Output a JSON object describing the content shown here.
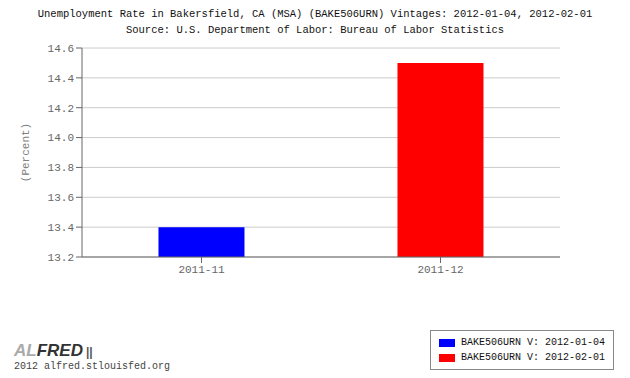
{
  "chart_data": {
    "type": "bar",
    "title": "Unemployment Rate in Bakersfield, CA (MSA) (BAKE506URN) Vintages: 2012-01-04, 2012-02-01",
    "subtitle": "Source: U.S. Department of Labor: Bureau of Labor Statistics",
    "categories": [
      "2011-11",
      "2011-12"
    ],
    "series": [
      {
        "name": "BAKE506URN V: 2012-01-04",
        "color": "#0000ff",
        "values": [
          13.4,
          null
        ]
      },
      {
        "name": "BAKE506URN V: 2012-02-01",
        "color": "#ff0000",
        "values": [
          null,
          14.5
        ]
      }
    ],
    "ylabel": "(Percent)",
    "ylim": [
      13.2,
      14.6
    ],
    "yticks": [
      13.2,
      13.4,
      13.6,
      13.8,
      {
        "value": 14,
        "label": "14.0"
      },
      14.2,
      14.4,
      14.6
    ],
    "grid": true,
    "legend": "lower right",
    "annotations": [
      "AL",
      "FRED",
      "||",
      "2012 alfred.stlouisfed.org"
    ]
  }
}
